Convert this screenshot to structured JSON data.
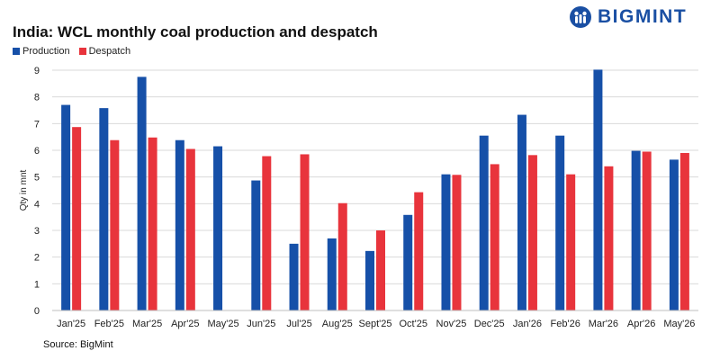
{
  "title": "India: WCL monthly coal production and despatch",
  "brand": "BIGMINT",
  "source": "Source: BigMint",
  "colors": {
    "production": "#1650a8",
    "despatch": "#e8343c",
    "grid": "#d9d9d9",
    "brand": "#1a4fa3"
  },
  "chart_data": {
    "type": "bar",
    "title": "India: WCL monthly coal production and despatch",
    "xlabel": "",
    "ylabel": "Qty in mnt",
    "ylim": [
      0,
      9
    ],
    "yticks": [
      "0",
      "1",
      "2",
      "3",
      "4",
      "5",
      "6",
      "7",
      "8",
      "9"
    ],
    "grid": true,
    "legend": "top-left",
    "categories": [
      "Jan'25",
      "Feb'25",
      "Mar'25",
      "Apr'25",
      "May'25",
      "Jun'25",
      "Jul'25",
      "Aug'25",
      "Sept'25",
      "Oct'25",
      "Nov'25",
      "Dec'25",
      "Jan'26",
      "Feb'26",
      "Mar'26",
      "Apr'26",
      "May'26"
    ],
    "series": [
      {
        "name": "Production",
        "values": [
          7.7,
          7.58,
          8.75,
          6.38,
          6.15,
          4.87,
          2.5,
          2.7,
          2.23,
          3.58,
          5.1,
          6.55,
          7.33,
          6.55,
          9.02,
          5.98,
          5.65
        ]
      },
      {
        "name": "Despatch",
        "values": [
          6.87,
          6.38,
          6.48,
          6.05,
          null,
          5.78,
          5.85,
          4.02,
          3.0,
          4.43,
          5.08,
          5.48,
          5.82,
          5.1,
          5.4,
          5.95,
          5.9
        ]
      }
    ]
  }
}
